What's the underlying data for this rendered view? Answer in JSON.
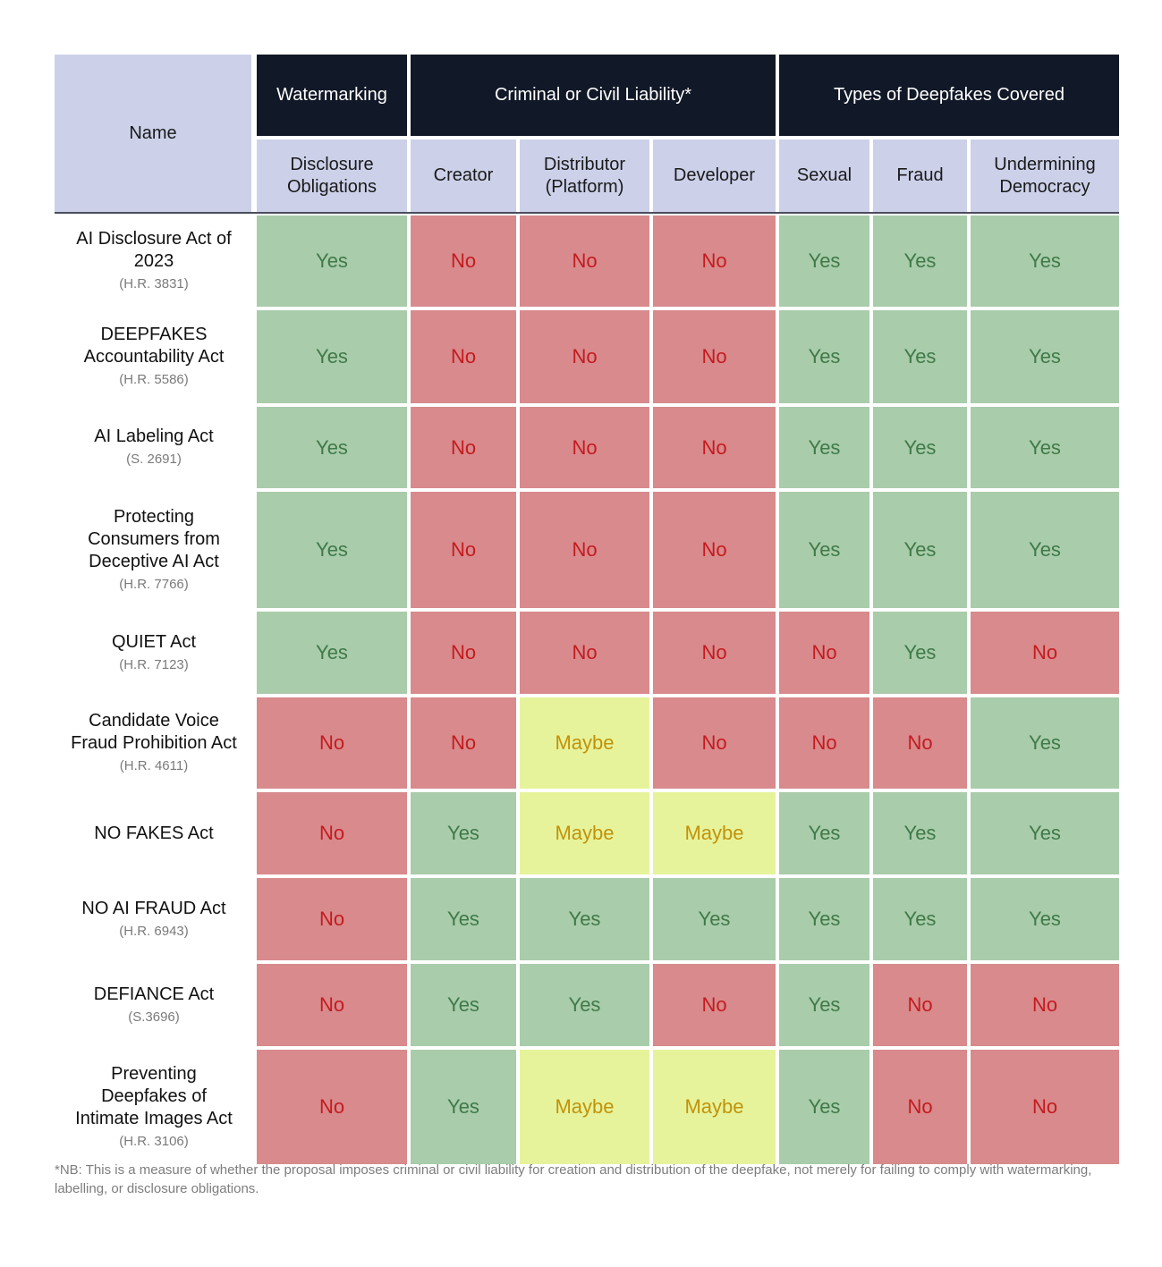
{
  "header": {
    "name": "Name",
    "groups": [
      {
        "label": "Watermarking",
        "span": 1
      },
      {
        "label": "Criminal or Civil Liability*",
        "span": 3
      },
      {
        "label": "Types of Deepfakes Covered",
        "span": 3
      }
    ],
    "subheaders": [
      "Disclosure\nObligations",
      "Creator",
      "Distributor\n(Platform)",
      "Developer",
      "Sexual",
      "Fraud",
      "Undermining\nDemocracy"
    ]
  },
  "colors": {
    "yes_fill": "#a9ccaa",
    "yes_text": "#3f7a48",
    "no_fill": "#d88a8c",
    "no_text": "#c41b1f",
    "maybe_fill": "#e6f39b",
    "maybe_text": "#c2920a",
    "header_dark": "#111827",
    "header_light": "#ccd1e9"
  },
  "rows": [
    {
      "name": "AI Disclosure Act of\n2023",
      "code": "(H.R. 3831)",
      "values": [
        "Yes",
        "No",
        "No",
        "No",
        "Yes",
        "Yes",
        "Yes"
      ]
    },
    {
      "name": "DEEPFAKES\nAccountability Act",
      "code": "(H.R. 5586)",
      "values": [
        "Yes",
        "No",
        "No",
        "No",
        "Yes",
        "Yes",
        "Yes"
      ]
    },
    {
      "name": "AI Labeling Act",
      "code": "(S. 2691)",
      "values": [
        "Yes",
        "No",
        "No",
        "No",
        "Yes",
        "Yes",
        "Yes"
      ]
    },
    {
      "name": "Protecting\nConsumers from\nDeceptive AI Act",
      "code": "(H.R. 7766)",
      "values": [
        "Yes",
        "No",
        "No",
        "No",
        "Yes",
        "Yes",
        "Yes"
      ]
    },
    {
      "name": "QUIET Act",
      "code": "(H.R. 7123)",
      "values": [
        "Yes",
        "No",
        "No",
        "No",
        "No",
        "Yes",
        "No"
      ]
    },
    {
      "name": "Candidate Voice\nFraud Prohibition Act",
      "code": "(H.R. 4611)",
      "values": [
        "No",
        "No",
        "Maybe",
        "No",
        "No",
        "No",
        "Yes"
      ]
    },
    {
      "name": "NO FAKES Act",
      "code": "",
      "values": [
        "No",
        "Yes",
        "Maybe",
        "Maybe",
        "Yes",
        "Yes",
        "Yes"
      ]
    },
    {
      "name": "NO AI FRAUD Act",
      "code": "(H.R. 6943)",
      "values": [
        "No",
        "Yes",
        "Yes",
        "Yes",
        "Yes",
        "Yes",
        "Yes"
      ]
    },
    {
      "name": "DEFIANCE Act",
      "code": "(S.3696)",
      "values": [
        "No",
        "Yes",
        "Yes",
        "No",
        "Yes",
        "No",
        "No"
      ]
    },
    {
      "name": "Preventing\nDeepfakes of\nIntimate Images Act",
      "code": "(H.R. 3106)",
      "values": [
        "No",
        "Yes",
        "Maybe",
        "Maybe",
        "Yes",
        "No",
        "No"
      ]
    }
  ],
  "footnote": "*NB: This is a measure of whether the proposal imposes criminal or civil liability for creation and distribution of the deepfake, not merely for failing to comply with watermarking, labelling, or disclosure obligations."
}
